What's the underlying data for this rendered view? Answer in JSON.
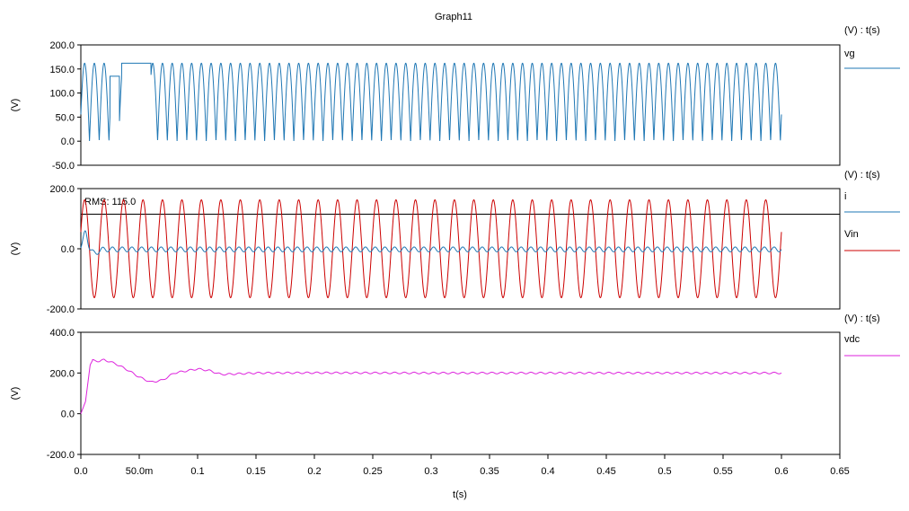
{
  "title": "Graph11",
  "x_axis": {
    "label": "t(s)",
    "ticks": [
      0.0,
      0.05,
      0.1,
      0.15,
      0.2,
      0.25,
      0.3,
      0.35,
      0.4,
      0.45,
      0.5,
      0.55,
      0.6,
      0.65
    ],
    "tick_labels": [
      "0.0",
      "50.0m",
      "0.1",
      "0.15",
      "0.2",
      "0.25",
      "0.3",
      "0.35",
      "0.4",
      "0.45",
      "0.5",
      "0.55",
      "0.6",
      "0.65"
    ],
    "range": [
      0,
      0.65
    ]
  },
  "chart_data": [
    {
      "type": "line",
      "panel": "top",
      "ylabel": "(V)",
      "ylim": [
        -50,
        200
      ],
      "yticks": [
        200,
        150,
        100,
        50,
        0,
        -50
      ],
      "ytick_labels": [
        "200.0",
        "150.0",
        "100.0",
        "50.0",
        "0.0",
        "-50.0"
      ],
      "legend_header": "(V) : t(s)",
      "series": [
        {
          "name": "vg",
          "color": "#1f77b4",
          "description": "Rectified 60 Hz sine, peak ~162 V; clipped flat at ~162 V from ~0.035 to ~0.06 s with a dip to ~135 V around 0.025-0.033 s",
          "peak": 162,
          "frequency_hz": 60,
          "t_end": 0.6,
          "flat_segments": [
            {
              "t_start": 0.025,
              "t_end": 0.033,
              "value": 135
            },
            {
              "t_start": 0.035,
              "t_end": 0.06,
              "value": 162
            }
          ]
        }
      ]
    },
    {
      "type": "line",
      "panel": "middle",
      "ylabel": "(V)",
      "ylim": [
        -200,
        200
      ],
      "yticks": [
        200,
        0,
        -200
      ],
      "ytick_labels": [
        "200.0",
        "0.0",
        "-200.0"
      ],
      "legend_header": "(V) : t(s)",
      "annotation": "RMS: 115.0",
      "rms_line": 115,
      "series": [
        {
          "name": "i",
          "color": "#1f77b4",
          "description": "Small current; initial spike to ~60 at ~0.004 s then ripple of ~±8 around 0",
          "peak": 60,
          "ripple_amplitude": 8,
          "t_end": 0.6
        },
        {
          "name": "Vin",
          "color": "#cc0000",
          "description": "60 Hz sine, amplitude ~162.6 V",
          "amplitude": 162.6,
          "frequency_hz": 60,
          "t_end": 0.6
        }
      ]
    },
    {
      "type": "line",
      "panel": "bottom",
      "ylabel": "(V)",
      "ylim": [
        -200,
        400
      ],
      "yticks": [
        400,
        200,
        0,
        -200
      ],
      "ytick_labels": [
        "400.0",
        "200.0",
        "0.0",
        "-200.0"
      ],
      "legend_header": "(V) : t(s)",
      "series": [
        {
          "name": "vdc",
          "color": "#dd22dd",
          "description": "DC link voltage: rises to ~265 V by ~0.012 s, decays to ~155 V at ~0.06 s, recovers to ~220 V near 0.1 s, settles ~200 V with small ripple",
          "keypoints": [
            [
              0.0,
              0
            ],
            [
              0.004,
              60
            ],
            [
              0.006,
              150
            ],
            [
              0.008,
              240
            ],
            [
              0.01,
              262
            ],
            [
              0.016,
              258
            ],
            [
              0.02,
              265
            ],
            [
              0.03,
              245
            ],
            [
              0.04,
              215
            ],
            [
              0.05,
              180
            ],
            [
              0.06,
              155
            ],
            [
              0.07,
              165
            ],
            [
              0.08,
              200
            ],
            [
              0.09,
              210
            ],
            [
              0.1,
              220
            ],
            [
              0.11,
              212
            ],
            [
              0.12,
              193
            ],
            [
              0.13,
              195
            ],
            [
              0.15,
              200
            ],
            [
              0.2,
              201
            ],
            [
              0.3,
              200
            ],
            [
              0.4,
              200
            ],
            [
              0.5,
              200
            ],
            [
              0.6,
              200
            ]
          ],
          "ripple_amplitude": 4,
          "t_end": 0.6
        }
      ]
    }
  ]
}
